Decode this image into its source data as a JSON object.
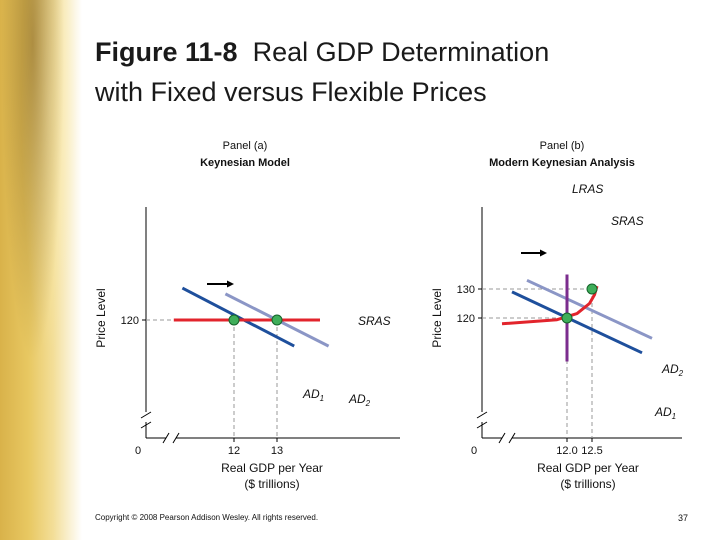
{
  "slide": {
    "title_figure": "Figure 11-8",
    "title_text": "Real GDP Determination",
    "title_line2": "with Fixed versus Flexible Prices",
    "copyright": "Copyright © 2008 Pearson Addison Wesley. All rights reserved.",
    "page_number": "37"
  },
  "chart_data": [
    {
      "type": "line",
      "panel": "Panel (a)",
      "title": "Keynesian Model",
      "xlabel": "Real GDP per Year",
      "xlabel_unit": "($ trillions)",
      "ylabel": "Price Level",
      "origin_label": "0",
      "x_ticks": [
        12,
        13
      ],
      "x_tick_labels": [
        "12",
        "13"
      ],
      "y_ticks": [
        120
      ],
      "y_tick_labels": [
        "120"
      ],
      "xlim": [
        10.5,
        14.5
      ],
      "ylim": [
        105,
        135
      ],
      "series": [
        {
          "name": "SRAS",
          "color": "#e2242c",
          "points": [
            [
              10.6,
              120
            ],
            [
              14.0,
              120
            ]
          ]
        },
        {
          "name": "AD1",
          "color": "#1e4f9c",
          "points": [
            [
              10.8,
              131
            ],
            [
              13.4,
              111
            ]
          ]
        },
        {
          "name": "AD2",
          "color": "#8b96c6",
          "points": [
            [
              11.8,
              129
            ],
            [
              14.2,
              111
            ]
          ]
        }
      ],
      "series_labels": [
        {
          "series": "SRAS",
          "text": "SRAS"
        },
        {
          "series": "AD1",
          "text": "AD",
          "subscript": "1"
        },
        {
          "series": "AD2",
          "text": "AD",
          "subscript": "2"
        }
      ],
      "equilibria": [
        [
          12,
          120
        ],
        [
          13,
          120
        ]
      ],
      "shift_arrow": "AD1 to AD2",
      "grid": false
    },
    {
      "type": "line",
      "panel": "Panel (b)",
      "title": "Modern Keynesian Analysis",
      "xlabel": "Real GDP per Year",
      "xlabel_unit": "($ trillions)",
      "ylabel": "Price Level",
      "origin_label": "0",
      "x_ticks": [
        12.0,
        12.5
      ],
      "x_tick_labels": [
        "12.0",
        "12.5"
      ],
      "y_ticks": [
        120,
        130
      ],
      "y_tick_labels": [
        "120",
        "130"
      ],
      "xlim": [
        10.5,
        14.5
      ],
      "ylim": [
        105,
        135
      ],
      "series": [
        {
          "name": "LRAS",
          "color": "#7b2d8e",
          "points": [
            [
              12.0,
              105
            ],
            [
              12.0,
              135
            ]
          ]
        },
        {
          "name": "SRAS",
          "color": "#e2242c",
          "points": [
            [
              10.7,
              118
            ],
            [
              11.8,
              119.4
            ],
            [
              12.2,
              121.5
            ],
            [
              12.45,
              125
            ],
            [
              12.55,
              128
            ],
            [
              12.6,
              131
            ]
          ]
        },
        {
          "name": "AD1",
          "color": "#1e4f9c",
          "points": [
            [
              10.9,
              129
            ],
            [
              13.5,
              108
            ]
          ]
        },
        {
          "name": "AD2",
          "color": "#8b96c6",
          "points": [
            [
              11.2,
              133
            ],
            [
              13.7,
              113
            ]
          ]
        }
      ],
      "series_labels": [
        {
          "series": "LRAS",
          "text": "LRAS"
        },
        {
          "series": "SRAS",
          "text": "SRAS"
        },
        {
          "series": "AD2",
          "text": "AD",
          "subscript": "2"
        },
        {
          "series": "AD1",
          "text": "AD",
          "subscript": "1"
        }
      ],
      "equilibria": [
        [
          12.0,
          120
        ],
        [
          12.5,
          130
        ]
      ],
      "shift_arrow": "AD1 to AD2",
      "grid": false
    }
  ]
}
